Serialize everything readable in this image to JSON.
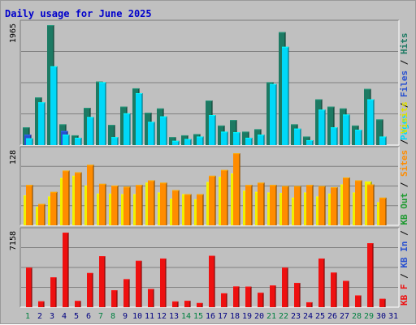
{
  "chart_data": [
    {
      "type": "bar",
      "title": "Daily usage for June 2025",
      "categories": [
        "1",
        "2",
        "3",
        "4",
        "5",
        "6",
        "7",
        "8",
        "9",
        "10",
        "11",
        "12",
        "13",
        "14",
        "15",
        "16",
        "17",
        "18",
        "19",
        "20",
        "21",
        "22",
        "23",
        "24",
        "25",
        "26",
        "27",
        "28",
        "29",
        "30",
        "31"
      ],
      "weekend_days": [
        "1",
        "7",
        "8",
        "14",
        "15",
        "21",
        "22",
        "28",
        "29"
      ],
      "y_max_label": "1965",
      "ylim": [
        0,
        1965
      ],
      "grid": true,
      "series": [
        {
          "name": "Pages",
          "color": "#1d7a63",
          "values": [
            290,
            780,
            1965,
            340,
            160,
            610,
            1040,
            330,
            630,
            930,
            530,
            600,
            130,
            160,
            180,
            730,
            320,
            410,
            220,
            260,
            1030,
            1850,
            340,
            140,
            750,
            630,
            600,
            320,
            920,
            420,
            0
          ]
        },
        {
          "name": "Files",
          "color": "#2850d0",
          "values": [
            170,
            0,
            0,
            230,
            0,
            0,
            0,
            0,
            0,
            0,
            0,
            0,
            0,
            0,
            0,
            0,
            0,
            0,
            0,
            0,
            0,
            0,
            0,
            0,
            0,
            0,
            0,
            0,
            0,
            0,
            0
          ]
        },
        {
          "name": "Hits",
          "color": "#00d8f8",
          "values": [
            110,
            700,
            1290,
            170,
            120,
            460,
            1030,
            130,
            520,
            850,
            380,
            470,
            70,
            100,
            140,
            490,
            220,
            210,
            120,
            170,
            1000,
            1610,
            270,
            80,
            580,
            290,
            500,
            250,
            750,
            140,
            0
          ]
        }
      ],
      "legend": [
        "Pages",
        "Files",
        "Hits"
      ],
      "legend_placement": "right, vertical"
    },
    {
      "type": "bar",
      "categories": [
        "1",
        "2",
        "3",
        "4",
        "5",
        "6",
        "7",
        "8",
        "9",
        "10",
        "11",
        "12",
        "13",
        "14",
        "15",
        "16",
        "17",
        "18",
        "19",
        "20",
        "21",
        "22",
        "23",
        "24",
        "25",
        "26",
        "27",
        "28",
        "29",
        "30",
        "31"
      ],
      "y_max_label": "128",
      "ylim": [
        0,
        128
      ],
      "grid": true,
      "series": [
        {
          "name": "Visits",
          "color": "#f0f000",
          "values": [
            52,
            32,
            50,
            82,
            86,
            69,
            55,
            55,
            54,
            54,
            74,
            57,
            46,
            54,
            45,
            75,
            84,
            90,
            60,
            58,
            57,
            56,
            48,
            57,
            50,
            55,
            71,
            57,
            76,
            40,
            0
          ]
        },
        {
          "name": "Sites",
          "color": "#ff8c00",
          "values": [
            70,
            37,
            58,
            95,
            92,
            105,
            72,
            69,
            67,
            70,
            78,
            74,
            61,
            54,
            54,
            86,
            96,
            125,
            70,
            74,
            70,
            68,
            68,
            70,
            68,
            66,
            83,
            78,
            71,
            48,
            0
          ]
        }
      ],
      "legend": [
        "Visits",
        "Sites",
        "KB Out",
        "KB In",
        "KB F"
      ],
      "legend_placement": "right, vertical"
    },
    {
      "type": "bar",
      "categories": [
        "1",
        "2",
        "3",
        "4",
        "5",
        "6",
        "7",
        "8",
        "9",
        "10",
        "11",
        "12",
        "13",
        "14",
        "15",
        "16",
        "17",
        "18",
        "19",
        "20",
        "21",
        "22",
        "23",
        "24",
        "25",
        "26",
        "27",
        "28",
        "29",
        "30",
        "31"
      ],
      "y_max_label": "7158",
      "ylim": [
        0,
        7158
      ],
      "grid": true,
      "series": [
        {
          "name": "KB F",
          "color": "#ee1010",
          "values": [
            3790,
            560,
            2860,
            7158,
            600,
            3280,
            4890,
            1620,
            2690,
            4450,
            1750,
            4670,
            550,
            610,
            400,
            4930,
            1330,
            1990,
            1970,
            1380,
            2080,
            3790,
            2330,
            470,
            4670,
            3320,
            2520,
            1130,
            6140,
            800,
            0
          ]
        }
      ]
    }
  ]
}
